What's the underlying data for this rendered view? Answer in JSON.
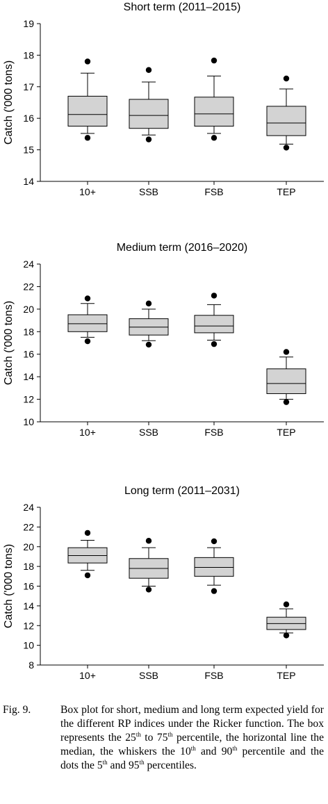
{
  "chart_data": [
    {
      "type": "box",
      "title": "Short term (2011–2015)",
      "ylabel": "Catch ('000 tons)",
      "ylim": [
        14,
        19
      ],
      "yticks": [
        14,
        15,
        16,
        17,
        18,
        19
      ],
      "categories": [
        "10+",
        "SSB",
        "FSB",
        "TEP"
      ],
      "boxes": [
        {
          "p5": 15.38,
          "p10": 15.52,
          "q1": 15.75,
          "median": 16.12,
          "q3": 16.7,
          "p90": 17.43,
          "p95": 17.8
        },
        {
          "p5": 15.33,
          "p10": 15.47,
          "q1": 15.68,
          "median": 16.09,
          "q3": 16.6,
          "p90": 17.15,
          "p95": 17.53
        },
        {
          "p5": 15.38,
          "p10": 15.52,
          "q1": 15.75,
          "median": 16.14,
          "q3": 16.67,
          "p90": 17.34,
          "p95": 17.83
        },
        {
          "p5": 15.07,
          "p10": 15.18,
          "q1": 15.45,
          "median": 15.85,
          "q3": 16.38,
          "p90": 16.93,
          "p95": 17.26
        }
      ]
    },
    {
      "type": "box",
      "title": "Medium term (2016–2020)",
      "ylabel": "Catch ('000 tons)",
      "ylim": [
        10,
        24
      ],
      "yticks": [
        10,
        12,
        14,
        16,
        18,
        20,
        22,
        24
      ],
      "categories": [
        "10+",
        "SSB",
        "FSB",
        "TEP"
      ],
      "boxes": [
        {
          "p5": 17.15,
          "p10": 17.5,
          "q1": 18.0,
          "median": 18.7,
          "q3": 19.5,
          "p90": 20.5,
          "p95": 20.95
        },
        {
          "p5": 16.85,
          "p10": 17.2,
          "q1": 17.7,
          "median": 18.4,
          "q3": 19.15,
          "p90": 20.0,
          "p95": 20.5
        },
        {
          "p5": 16.9,
          "p10": 17.25,
          "q1": 17.9,
          "median": 18.5,
          "q3": 19.45,
          "p90": 20.4,
          "p95": 21.2
        },
        {
          "p5": 11.75,
          "p10": 12.0,
          "q1": 12.5,
          "median": 13.4,
          "q3": 14.7,
          "p90": 15.75,
          "p95": 16.2
        }
      ]
    },
    {
      "type": "box",
      "title": "Long term (2011–2031)",
      "ylabel": "Catch ('000 tons)",
      "ylim": [
        8,
        24
      ],
      "yticks": [
        8,
        10,
        12,
        14,
        16,
        18,
        20,
        22,
        24
      ],
      "categories": [
        "10+",
        "SSB",
        "FSB",
        "TEP"
      ],
      "boxes": [
        {
          "p5": 17.1,
          "p10": 17.6,
          "q1": 18.35,
          "median": 19.1,
          "q3": 19.9,
          "p90": 20.65,
          "p95": 21.4
        },
        {
          "p5": 15.65,
          "p10": 16.0,
          "q1": 16.8,
          "median": 17.8,
          "q3": 18.8,
          "p90": 19.9,
          "p95": 20.6
        },
        {
          "p5": 15.5,
          "p10": 16.1,
          "q1": 17.0,
          "median": 17.9,
          "q3": 18.9,
          "p90": 19.9,
          "p95": 20.55
        },
        {
          "p5": 11.0,
          "p10": 11.25,
          "q1": 11.6,
          "median": 12.2,
          "q3": 12.85,
          "p90": 13.7,
          "p95": 14.15
        }
      ]
    }
  ],
  "colors": {
    "box_fill": "#d3d3d3",
    "stroke": "#000000"
  },
  "caption": {
    "label": "Fig. 9.",
    "text_before_25": "Box plot for short, medium and long term expected yield for the different RP indices under the Ricker function. The box represents the 25",
    "sup_25": "th",
    "text_to": " to 75",
    "sup_75": "th",
    "text_after_75": " percentile, the horizontal line the median, the whiskers the 10",
    "sup_10": "th",
    "text_and": " and 90",
    "sup_90": "th",
    "text_dots": " percentile and the dots the 5",
    "sup_5": "th",
    "text_and95": " and 95",
    "sup_95": "th",
    "text_end": " percentiles."
  }
}
